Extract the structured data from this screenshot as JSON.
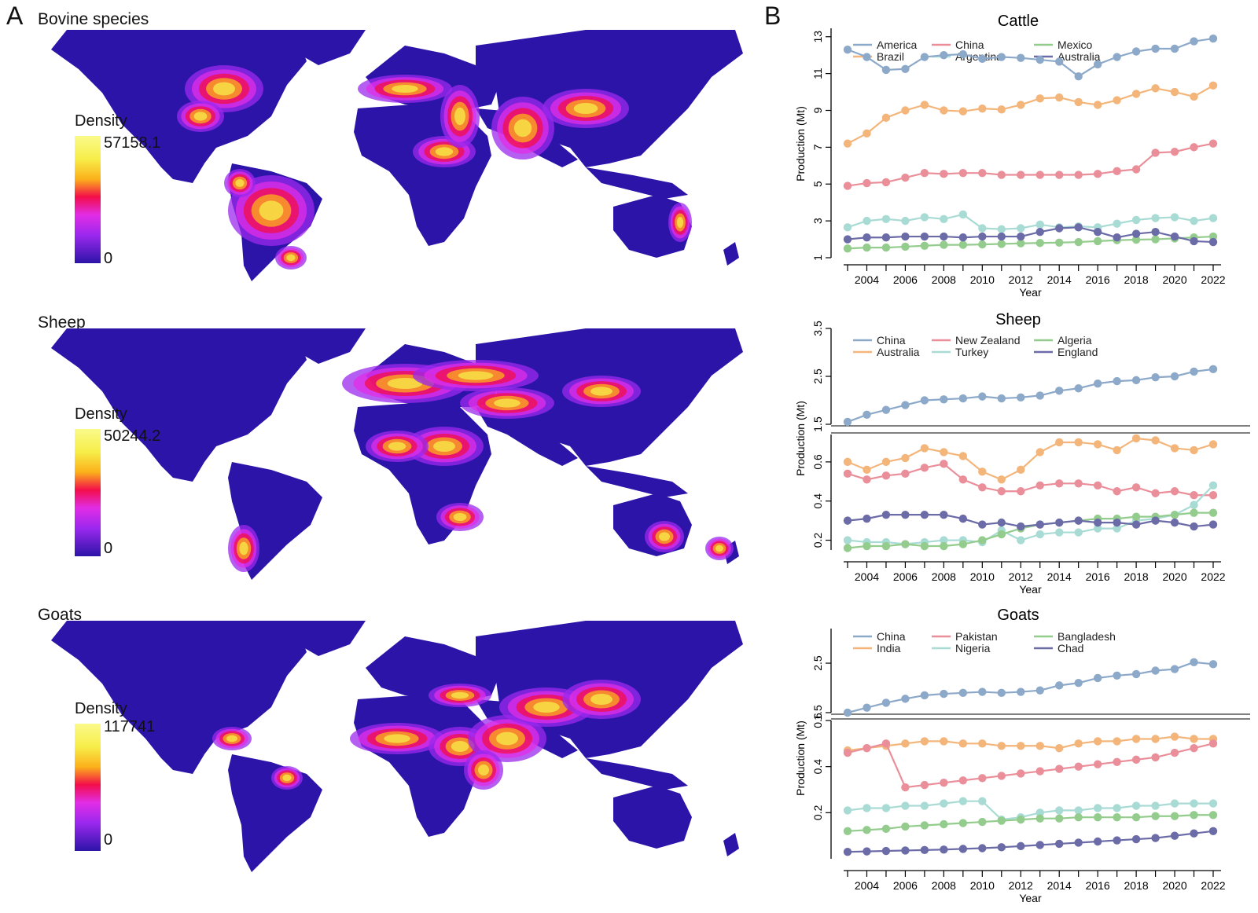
{
  "panel_a": {
    "letter": "A",
    "maps": [
      {
        "title": "Bovine species",
        "legend_title": "Density",
        "legend_max": "57158.1",
        "legend_min": "0"
      },
      {
        "title": "Sheep",
        "legend_title": "Density",
        "legend_max": "50244.2",
        "legend_min": "0"
      },
      {
        "title": "Goats",
        "legend_title": "Density",
        "legend_max": "117741",
        "legend_min": "0"
      }
    ]
  },
  "panel_b": {
    "letter": "B"
  },
  "colors": {
    "map_base": "#2c14a8",
    "hot_yellow": "#f7ee4a",
    "hot_orange": "#fbb01a",
    "hot_red": "#f30d4a",
    "hot_magenta": "#e22de6",
    "hot_purple": "#9b28ee"
  },
  "chart_data": [
    {
      "type": "line",
      "title": "Cattle",
      "xlabel": "Year",
      "ylabel": "Production (Mt)",
      "x": [
        2003,
        2004,
        2005,
        2006,
        2007,
        2008,
        2009,
        2010,
        2011,
        2012,
        2013,
        2014,
        2015,
        2016,
        2017,
        2018,
        2019,
        2020,
        2021,
        2022
      ],
      "xticks": [
        2004,
        2006,
        2008,
        2010,
        2012,
        2014,
        2016,
        2018,
        2020,
        2022
      ],
      "ylim": [
        1,
        13.8
      ],
      "yticks": [
        1,
        3,
        5,
        7,
        9,
        11,
        13
      ],
      "series": [
        {
          "name": "America",
          "color": "#8da9c9",
          "values": [
            12.3,
            11.9,
            11.2,
            11.25,
            11.9,
            12.0,
            12.05,
            11.8,
            11.9,
            11.85,
            11.75,
            11.65,
            10.85,
            11.5,
            11.9,
            12.2,
            12.35,
            12.35,
            12.75,
            12.9
          ]
        },
        {
          "name": "Brazil",
          "color": "#f3b57a",
          "values": [
            7.2,
            7.75,
            8.6,
            9.0,
            9.3,
            9.0,
            8.95,
            9.1,
            9.05,
            9.3,
            9.65,
            9.7,
            9.45,
            9.3,
            9.55,
            9.9,
            10.2,
            10.0,
            9.75,
            10.35
          ]
        },
        {
          "name": "China",
          "color": "#ea8f9a",
          "values": [
            4.9,
            5.05,
            5.1,
            5.35,
            5.6,
            5.55,
            5.6,
            5.6,
            5.5,
            5.5,
            5.5,
            5.5,
            5.5,
            5.55,
            5.7,
            5.8,
            6.7,
            6.75,
            7.0,
            7.2
          ]
        },
        {
          "name": "Argentina",
          "color": "#a9dbd5",
          "values": [
            2.65,
            3.0,
            3.1,
            3.0,
            3.2,
            3.1,
            3.35,
            2.6,
            2.55,
            2.6,
            2.8,
            2.65,
            2.7,
            2.65,
            2.85,
            3.05,
            3.15,
            3.2,
            3.0,
            3.15
          ]
        },
        {
          "name": "Mexico",
          "color": "#93cc8c",
          "values": [
            1.5,
            1.55,
            1.55,
            1.6,
            1.65,
            1.7,
            1.7,
            1.72,
            1.75,
            1.78,
            1.8,
            1.82,
            1.85,
            1.9,
            1.95,
            1.98,
            2.0,
            2.05,
            2.1,
            2.15
          ]
        },
        {
          "name": "Australia",
          "color": "#6b6ba8",
          "values": [
            2.0,
            2.1,
            2.1,
            2.15,
            2.15,
            2.15,
            2.1,
            2.15,
            2.15,
            2.15,
            2.4,
            2.6,
            2.65,
            2.4,
            2.1,
            2.3,
            2.4,
            2.15,
            1.9,
            1.85
          ]
        }
      ]
    },
    {
      "type": "line",
      "title": "Sheep",
      "xlabel": "Year",
      "ylabel": "Production (Mt)",
      "x": [
        2003,
        2004,
        2005,
        2006,
        2007,
        2008,
        2009,
        2010,
        2011,
        2012,
        2013,
        2014,
        2015,
        2016,
        2017,
        2018,
        2019,
        2020,
        2021,
        2022
      ],
      "xticks": [
        2004,
        2006,
        2008,
        2010,
        2012,
        2014,
        2016,
        2018,
        2020,
        2022
      ],
      "broken_axis": true,
      "upper_ylim": [
        1.5,
        3.5
      ],
      "upper_yticks": [
        1.5,
        2.5,
        3.5
      ],
      "lower_ylim": [
        0.15,
        0.74
      ],
      "lower_yticks": [
        0.2,
        0.4,
        0.6
      ],
      "series": [
        {
          "name": "China",
          "color": "#8da9c9",
          "segment": "upper",
          "values": [
            1.55,
            1.7,
            1.8,
            1.9,
            2.0,
            2.02,
            2.04,
            2.08,
            2.04,
            2.06,
            2.1,
            2.2,
            2.25,
            2.35,
            2.4,
            2.42,
            2.48,
            2.5,
            2.6,
            2.65
          ]
        },
        {
          "name": "Australia",
          "color": "#f3b57a",
          "segment": "lower",
          "values": [
            0.6,
            0.56,
            0.6,
            0.62,
            0.67,
            0.65,
            0.63,
            0.55,
            0.51,
            0.56,
            0.65,
            0.7,
            0.7,
            0.69,
            0.66,
            0.72,
            0.71,
            0.67,
            0.66,
            0.69
          ]
        },
        {
          "name": "New Zealand",
          "color": "#ea8f9a",
          "segment": "lower",
          "values": [
            0.54,
            0.51,
            0.53,
            0.54,
            0.57,
            0.59,
            0.51,
            0.47,
            0.45,
            0.45,
            0.48,
            0.49,
            0.49,
            0.48,
            0.45,
            0.47,
            0.44,
            0.45,
            0.43,
            0.43
          ]
        },
        {
          "name": "Turkey",
          "color": "#a9dbd5",
          "segment": "lower",
          "values": [
            0.2,
            0.19,
            0.19,
            0.18,
            0.19,
            0.2,
            0.2,
            0.19,
            0.25,
            0.2,
            0.23,
            0.24,
            0.24,
            0.26,
            0.26,
            0.3,
            0.31,
            0.33,
            0.38,
            0.48
          ]
        },
        {
          "name": "Algeria",
          "color": "#93cc8c",
          "segment": "lower",
          "values": [
            0.16,
            0.17,
            0.17,
            0.18,
            0.17,
            0.17,
            0.18,
            0.2,
            0.23,
            0.26,
            0.28,
            0.29,
            0.3,
            0.31,
            0.31,
            0.32,
            0.32,
            0.33,
            0.34,
            0.34
          ]
        },
        {
          "name": "England",
          "color": "#6b6ba8",
          "segment": "lower",
          "values": [
            0.3,
            0.31,
            0.33,
            0.33,
            0.33,
            0.33,
            0.31,
            0.28,
            0.29,
            0.27,
            0.28,
            0.29,
            0.3,
            0.29,
            0.29,
            0.28,
            0.3,
            0.29,
            0.27,
            0.28
          ]
        }
      ]
    },
    {
      "type": "line",
      "title": "Goats",
      "xlabel": "Year",
      "ylabel": "Production (Mt)",
      "x": [
        2003,
        2004,
        2005,
        2006,
        2007,
        2008,
        2009,
        2010,
        2011,
        2012,
        2013,
        2014,
        2015,
        2016,
        2017,
        2018,
        2019,
        2020,
        2021,
        2022
      ],
      "xticks": [
        2004,
        2006,
        2008,
        2010,
        2012,
        2014,
        2016,
        2018,
        2020,
        2022
      ],
      "broken_axis": true,
      "upper_ylim": [
        1.5,
        3.2
      ],
      "upper_yticks": [
        1.5,
        2.5
      ],
      "lower_ylim": [
        0.0,
        0.6
      ],
      "lower_yticks": [
        0.2,
        0.4,
        0.6
      ],
      "series": [
        {
          "name": "China",
          "color": "#8da9c9",
          "segment": "upper",
          "values": [
            1.5,
            1.6,
            1.7,
            1.78,
            1.85,
            1.88,
            1.9,
            1.92,
            1.9,
            1.92,
            1.95,
            2.05,
            2.1,
            2.2,
            2.25,
            2.28,
            2.35,
            2.38,
            2.52,
            2.48
          ]
        },
        {
          "name": "India",
          "color": "#f3b57a",
          "segment": "lower",
          "values": [
            0.47,
            0.48,
            0.49,
            0.5,
            0.51,
            0.51,
            0.5,
            0.5,
            0.49,
            0.49,
            0.49,
            0.48,
            0.5,
            0.51,
            0.51,
            0.52,
            0.52,
            0.53,
            0.52,
            0.52
          ]
        },
        {
          "name": "Pakistan",
          "color": "#ea8f9a",
          "segment": "lower",
          "values": [
            0.46,
            0.48,
            0.5,
            0.31,
            0.32,
            0.33,
            0.34,
            0.35,
            0.36,
            0.37,
            0.38,
            0.39,
            0.4,
            0.41,
            0.42,
            0.43,
            0.44,
            0.46,
            0.48,
            0.5
          ]
        },
        {
          "name": "Nigeria",
          "color": "#a9dbd5",
          "segment": "lower",
          "values": [
            0.21,
            0.22,
            0.22,
            0.23,
            0.23,
            0.24,
            0.25,
            0.25,
            0.17,
            0.18,
            0.2,
            0.21,
            0.21,
            0.22,
            0.22,
            0.23,
            0.23,
            0.24,
            0.24,
            0.24
          ]
        },
        {
          "name": "Bangladesh",
          "color": "#93cc8c",
          "segment": "lower",
          "values": [
            0.12,
            0.125,
            0.13,
            0.14,
            0.145,
            0.15,
            0.155,
            0.16,
            0.165,
            0.17,
            0.175,
            0.175,
            0.18,
            0.18,
            0.18,
            0.18,
            0.185,
            0.185,
            0.19,
            0.19
          ]
        },
        {
          "name": "Chad",
          "color": "#6b6ba8",
          "segment": "lower",
          "values": [
            0.03,
            0.032,
            0.034,
            0.036,
            0.038,
            0.04,
            0.043,
            0.046,
            0.05,
            0.055,
            0.06,
            0.065,
            0.07,
            0.075,
            0.08,
            0.085,
            0.09,
            0.1,
            0.11,
            0.12
          ]
        }
      ]
    }
  ]
}
